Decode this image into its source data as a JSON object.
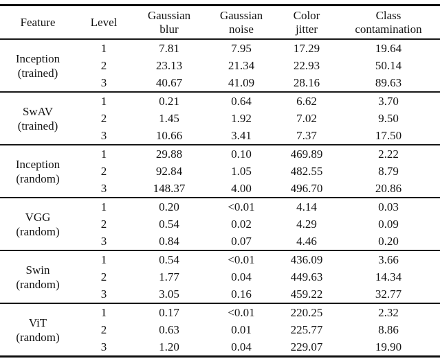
{
  "colors": {
    "background": "#ffffff",
    "text": "#141414",
    "rule": "#161616"
  },
  "table": {
    "headers": [
      {
        "key": "feature",
        "lines": [
          "Feature"
        ]
      },
      {
        "key": "level",
        "lines": [
          "Level"
        ]
      },
      {
        "key": "gaussian_blur",
        "lines": [
          "Gaussian",
          "blur"
        ]
      },
      {
        "key": "gaussian_noise",
        "lines": [
          "Gaussian",
          "noise"
        ]
      },
      {
        "key": "color_jitter",
        "lines": [
          "Color",
          "jitter"
        ]
      },
      {
        "key": "class_contamination",
        "lines": [
          "Class",
          "contamination"
        ]
      }
    ],
    "groups": [
      {
        "feature": "Inception",
        "qualifier": "(trained)",
        "rows": [
          [
            "1",
            "7.81",
            "7.95",
            "17.29",
            "19.64"
          ],
          [
            "2",
            "23.13",
            "21.34",
            "22.93",
            "50.14"
          ],
          [
            "3",
            "40.67",
            "41.09",
            "28.16",
            "89.63"
          ]
        ]
      },
      {
        "feature": "SwAV",
        "qualifier": "(trained)",
        "rows": [
          [
            "1",
            "0.21",
            "0.64",
            "6.62",
            "3.70"
          ],
          [
            "2",
            "1.45",
            "1.92",
            "7.02",
            "9.50"
          ],
          [
            "3",
            "10.66",
            "3.41",
            "7.37",
            "17.50"
          ]
        ]
      },
      {
        "feature": "Inception",
        "qualifier": "(random)",
        "rows": [
          [
            "1",
            "29.88",
            "0.10",
            "469.89",
            "2.22"
          ],
          [
            "2",
            "92.84",
            "1.05",
            "482.55",
            "8.79"
          ],
          [
            "3",
            "148.37",
            "4.00",
            "496.70",
            "20.86"
          ]
        ]
      },
      {
        "feature": "VGG",
        "qualifier": "(random)",
        "rows": [
          [
            "1",
            "0.20",
            "<0.01",
            "4.14",
            "0.03"
          ],
          [
            "2",
            "0.54",
            "0.02",
            "4.29",
            "0.09"
          ],
          [
            "3",
            "0.84",
            "0.07",
            "4.46",
            "0.20"
          ]
        ]
      },
      {
        "feature": "Swin",
        "qualifier": "(random)",
        "rows": [
          [
            "1",
            "0.54",
            "<0.01",
            "436.09",
            "3.66"
          ],
          [
            "2",
            "1.77",
            "0.04",
            "449.63",
            "14.34"
          ],
          [
            "3",
            "3.05",
            "0.16",
            "459.22",
            "32.77"
          ]
        ]
      },
      {
        "feature": "ViT",
        "qualifier": "(random)",
        "rows": [
          [
            "1",
            "0.17",
            "<0.01",
            "220.25",
            "2.32"
          ],
          [
            "2",
            "0.63",
            "0.01",
            "225.77",
            "8.86"
          ],
          [
            "3",
            "1.20",
            "0.04",
            "229.07",
            "19.90"
          ]
        ]
      }
    ]
  }
}
